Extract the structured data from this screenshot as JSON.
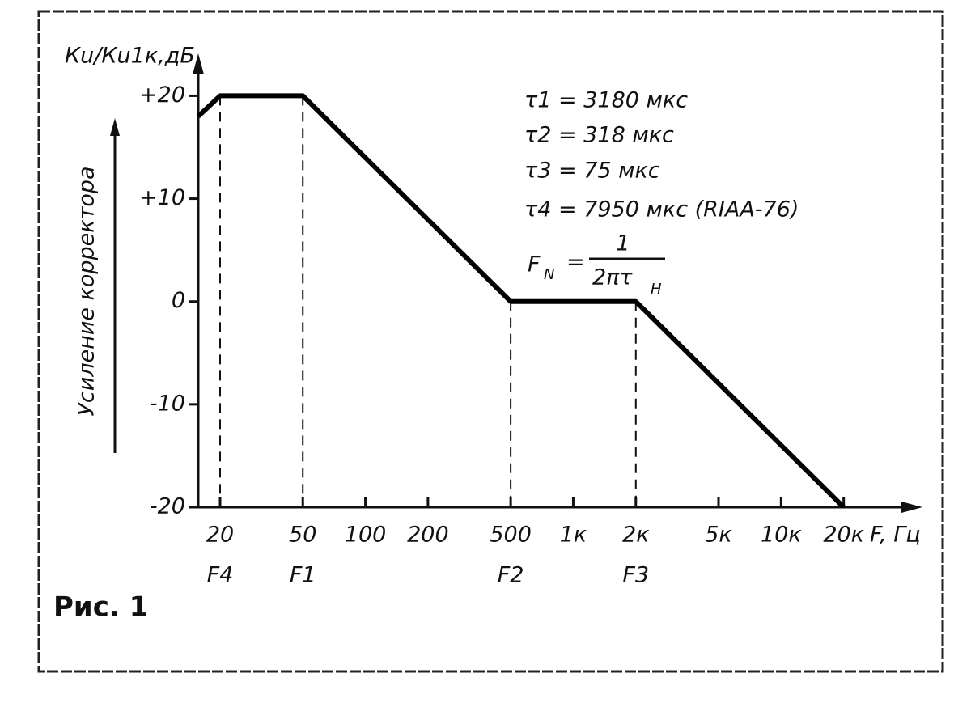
{
  "chart_data": {
    "type": "line",
    "title": "Рис. 1",
    "ylabel": "Кu/Кu1к,дБ",
    "ylabel_side": "Усиление корректора",
    "xlabel": "F, Гц",
    "log_x": true,
    "xlim": [
      15.7,
      40000
    ],
    "ylim": [
      -20,
      22
    ],
    "xticks": [
      20,
      50,
      100,
      200,
      500,
      {
        "value": 1000,
        "label": "1к"
      },
      {
        "value": 2000,
        "label": "2к"
      },
      {
        "value": 5000,
        "label": "5к"
      },
      {
        "value": 10000,
        "label": "10к"
      },
      {
        "value": 20000,
        "label": "20к"
      }
    ],
    "yticks": [
      {
        "value": 20,
        "label": "+20"
      },
      {
        "value": 10,
        "label": "+10"
      },
      0,
      -10,
      -20
    ],
    "grid": false,
    "series": [
      {
        "color": "#000000",
        "x": [
          15.7,
          20,
          50,
          500,
          2000,
          20000
        ],
        "values": [
          18,
          20,
          20,
          0,
          0,
          -20
        ],
        "point_labels": [
          null,
          "F4",
          "F1",
          "F2",
          "F3",
          null
        ]
      }
    ],
    "annotations": [
      "τ1 = 3180 мкс",
      "τ2 = 318 мкс",
      "τ3 = 75 мкс",
      "τ4 = 7950 мкс (RIAA-76)"
    ],
    "formula": {
      "lhs": "F",
      "lhs_sub": "N",
      "eq": "=",
      "numerator": "1",
      "denominator": "2πτ",
      "den_sub": "Н"
    }
  }
}
